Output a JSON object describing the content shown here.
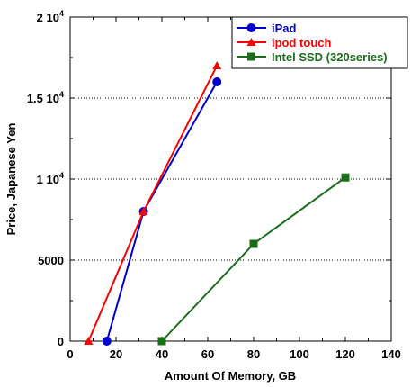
{
  "chart_data": {
    "type": "line",
    "title": "",
    "xlabel": "Amount Of Memory, GB",
    "ylabel": "Price, Japanese Yen",
    "xlim": [
      0,
      140
    ],
    "ylim": [
      0,
      20000
    ],
    "x_ticks": [
      0,
      20,
      40,
      60,
      80,
      100,
      120,
      140
    ],
    "y_ticks": [
      0,
      5000,
      10000,
      15000,
      20000
    ],
    "x_tick_labels": [
      "0",
      "20",
      "40",
      "60",
      "80",
      "100",
      "120",
      "140"
    ],
    "y_tick_labels": [
      {
        "value": 0,
        "base": "0",
        "exp": ""
      },
      {
        "value": 5000,
        "base": "5000",
        "exp": ""
      },
      {
        "value": 10000,
        "base": "1 10",
        "exp": "4"
      },
      {
        "value": 15000,
        "base": "1.5 10",
        "exp": "4"
      },
      {
        "value": 20000,
        "base": "2 10",
        "exp": "4"
      }
    ],
    "grid": "horizontal dotted",
    "legend_position": "top-right",
    "series": [
      {
        "name": "iPad",
        "color": "#0000cc",
        "marker": "circle",
        "points": [
          [
            16,
            0
          ],
          [
            32,
            8000
          ],
          [
            64,
            16000
          ]
        ]
      },
      {
        "name": "ipod touch",
        "color": "#ff0000",
        "marker": "triangle",
        "points": [
          [
            8,
            0
          ],
          [
            32,
            8000
          ],
          [
            64,
            17000
          ]
        ]
      },
      {
        "name": "Intel SSD (320series)",
        "color": "#1a6e1a",
        "marker": "square",
        "points": [
          [
            40,
            0
          ],
          [
            80,
            6000
          ],
          [
            120,
            10100
          ]
        ]
      }
    ]
  }
}
